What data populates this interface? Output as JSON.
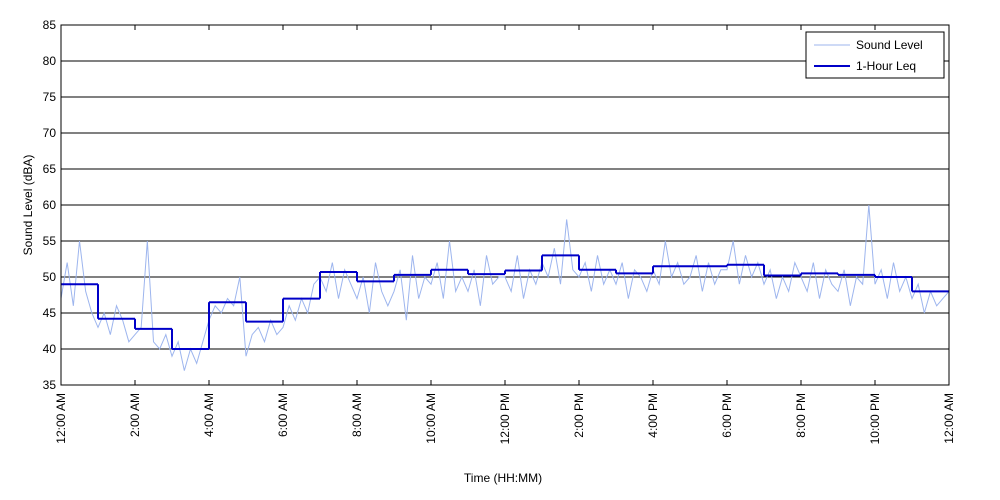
{
  "chart_data": {
    "type": "line",
    "x_label": "Time (HH:MM)",
    "y_label": "Sound Level (dBA)",
    "xlim": [
      0,
      1440
    ],
    "ylim": [
      35,
      85
    ],
    "xticks": [
      {
        "value": 0,
        "label": "12:00 AM"
      },
      {
        "value": 120,
        "label": "2:00 AM"
      },
      {
        "value": 240,
        "label": "4:00 AM"
      },
      {
        "value": 360,
        "label": "6:00 AM"
      },
      {
        "value": 480,
        "label": "8:00 AM"
      },
      {
        "value": 600,
        "label": "10:00 AM"
      },
      {
        "value": 720,
        "label": "12:00 PM"
      },
      {
        "value": 840,
        "label": "2:00 PM"
      },
      {
        "value": 960,
        "label": "4:00 PM"
      },
      {
        "value": 1080,
        "label": "6:00 PM"
      },
      {
        "value": 1200,
        "label": "8:00 PM"
      },
      {
        "value": 1320,
        "label": "10:00 PM"
      },
      {
        "value": 1440,
        "label": "12:00 AM"
      }
    ],
    "yticks": [
      35,
      40,
      45,
      50,
      55,
      60,
      65,
      70,
      75,
      80,
      85
    ],
    "grid": true,
    "legend": "upper-right",
    "series": [
      {
        "name": "Sound Level",
        "color": "#9db5ee",
        "style": "line",
        "x": [
          0,
          10,
          20,
          30,
          40,
          50,
          60,
          70,
          80,
          90,
          100,
          110,
          120,
          130,
          140,
          150,
          160,
          170,
          180,
          190,
          200,
          210,
          220,
          230,
          240,
          250,
          260,
          270,
          280,
          290,
          300,
          310,
          320,
          330,
          340,
          350,
          360,
          370,
          380,
          390,
          400,
          410,
          420,
          430,
          440,
          450,
          460,
          470,
          480,
          490,
          500,
          510,
          520,
          530,
          540,
          550,
          560,
          570,
          580,
          590,
          600,
          610,
          620,
          630,
          640,
          650,
          660,
          670,
          680,
          690,
          700,
          710,
          720,
          730,
          740,
          750,
          760,
          770,
          780,
          790,
          800,
          810,
          820,
          830,
          840,
          850,
          860,
          870,
          880,
          890,
          900,
          910,
          920,
          930,
          940,
          950,
          960,
          970,
          980,
          990,
          1000,
          1010,
          1020,
          1030,
          1040,
          1050,
          1060,
          1070,
          1080,
          1090,
          1100,
          1110,
          1120,
          1130,
          1140,
          1150,
          1160,
          1170,
          1180,
          1190,
          1200,
          1210,
          1220,
          1230,
          1240,
          1250,
          1260,
          1270,
          1280,
          1290,
          1300,
          1310,
          1320,
          1330,
          1340,
          1350,
          1360,
          1370,
          1380,
          1390,
          1400,
          1410,
          1420,
          1430,
          1440
        ],
        "values": [
          47,
          52,
          46,
          55,
          48,
          45,
          43,
          45,
          42,
          46,
          44,
          41,
          42,
          43,
          55,
          41,
          40,
          42,
          39,
          41,
          37,
          40,
          38,
          41,
          44,
          46,
          45,
          47,
          46,
          50,
          39,
          42,
          43,
          41,
          44,
          42,
          43,
          46,
          44,
          47,
          45,
          49,
          50,
          48,
          52,
          47,
          51,
          49,
          47,
          50,
          45,
          52,
          48,
          46,
          48,
          51,
          44,
          53,
          47,
          50,
          49,
          52,
          47,
          55,
          48,
          50,
          48,
          51,
          46,
          53,
          49,
          50,
          50,
          48,
          53,
          47,
          51,
          49,
          52,
          50,
          54,
          49,
          58,
          51,
          50,
          52,
          48,
          53,
          49,
          51,
          49,
          52,
          47,
          51,
          50,
          48,
          51,
          49,
          55,
          50,
          52,
          49,
          50,
          53,
          48,
          52,
          49,
          51,
          51,
          55,
          49,
          53,
          50,
          52,
          49,
          51,
          47,
          50,
          48,
          52,
          50,
          48,
          52,
          47,
          51,
          49,
          48,
          51,
          46,
          50,
          49,
          60,
          49,
          51,
          47,
          52,
          48,
          50,
          47,
          49,
          45,
          48,
          46,
          47,
          48
        ]
      },
      {
        "name": "1-Hour Leq",
        "color": "#0000c8",
        "style": "step",
        "x": [
          0,
          60,
          120,
          180,
          240,
          300,
          360,
          420,
          480,
          540,
          600,
          660,
          720,
          780,
          840,
          900,
          960,
          1020,
          1080,
          1140,
          1200,
          1260,
          1320,
          1380
        ],
        "values": [
          49,
          44.2,
          42.8,
          40,
          46.5,
          43.8,
          47,
          50.7,
          49.4,
          50.3,
          51,
          50.4,
          50.9,
          53,
          51,
          50.5,
          51.5,
          51.5,
          51.7,
          50.2,
          50.5,
          50.3,
          50,
          48
        ]
      }
    ]
  }
}
